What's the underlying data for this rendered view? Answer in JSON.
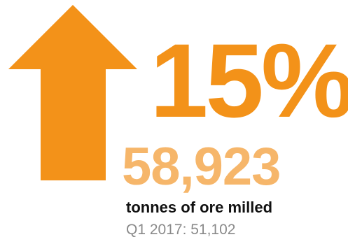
{
  "stat": {
    "change_percent": "15%",
    "change_direction": "up",
    "value": "58,923",
    "unit_label": "tonnes of ore milled",
    "comparison": "Q1 2017: 51,102"
  },
  "icons": {
    "arrow": "arrow-up-icon"
  },
  "colors": {
    "arrow": "#F39219",
    "percent": "#F39219",
    "value": "#F6B66A",
    "unit_label": "#111111",
    "comparison": "#8A8A8A"
  }
}
